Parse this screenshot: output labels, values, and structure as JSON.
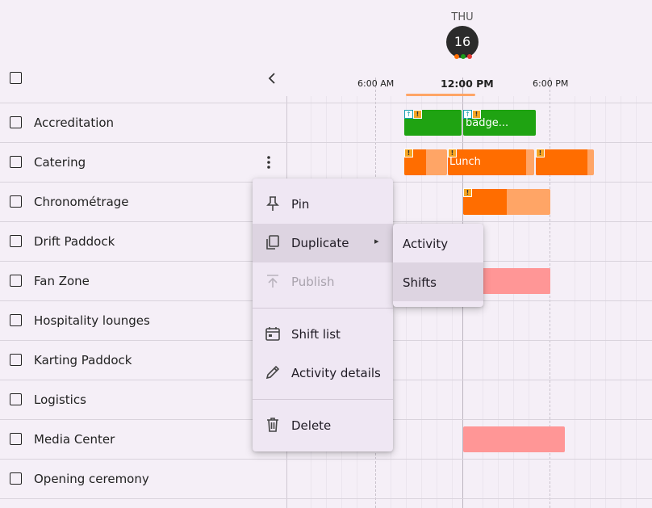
{
  "header": {
    "day_name": "THU",
    "day_number": "16",
    "collapse_icon": "chevron-left-icon",
    "status_dots": [
      "#ff6d00",
      "#1a9e1a",
      "#e53935"
    ]
  },
  "timeline": {
    "labels": [
      "6:00 AM",
      "12:00 PM",
      "6:00 PM"
    ]
  },
  "rows": [
    {
      "label": "Accreditation"
    },
    {
      "label": "Catering"
    },
    {
      "label": "Chronométrage"
    },
    {
      "label": "Drift Paddock"
    },
    {
      "label": "Fan Zone"
    },
    {
      "label": "Hospitality lounges"
    },
    {
      "label": "Karting Paddock"
    },
    {
      "label": "Logistics"
    },
    {
      "label": "Media Center"
    },
    {
      "label": "Opening ceremony"
    }
  ],
  "shifts": {
    "accreditation_badge_text": "badge...",
    "catering_lunch_text": "Lunch"
  },
  "colors": {
    "green": "#1fa312",
    "orange": "#ff6d00",
    "light_orange": "#ffa566",
    "pink": "#ff9696",
    "warning": "#f6a623",
    "accent_badge": "#2a2a2a"
  },
  "context_menu": {
    "items": [
      {
        "label": "Pin",
        "icon": "pin-icon"
      },
      {
        "label": "Duplicate",
        "icon": "duplicate-icon",
        "submenu_arrow": "▸"
      },
      {
        "label": "Publish",
        "icon": "publish-icon",
        "disabled": true
      },
      {
        "label": "Shift list",
        "icon": "calendar-icon"
      },
      {
        "label": "Activity details",
        "icon": "pencil-icon"
      },
      {
        "label": "Delete",
        "icon": "trash-icon"
      }
    ]
  },
  "submenu": {
    "items": [
      {
        "label": "Activity"
      },
      {
        "label": "Shifts"
      }
    ]
  }
}
